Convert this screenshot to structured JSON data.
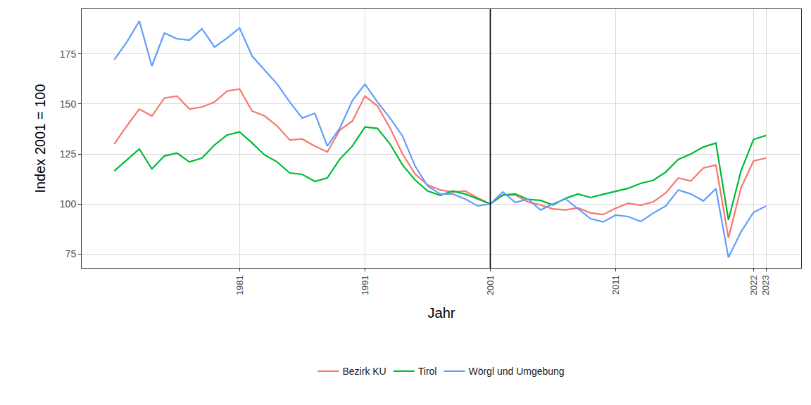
{
  "chart_data": {
    "type": "line",
    "x_title": "Jahr",
    "y_title": "Index 2001 = 100",
    "x": [
      1971,
      1972,
      1973,
      1974,
      1975,
      1976,
      1977,
      1978,
      1979,
      1980,
      1981,
      1982,
      1983,
      1984,
      1985,
      1986,
      1987,
      1988,
      1989,
      1990,
      1991,
      1992,
      1993,
      1994,
      1995,
      1996,
      1997,
      1998,
      1999,
      2000,
      2001,
      2002,
      2003,
      2004,
      2005,
      2006,
      2007,
      2008,
      2009,
      2010,
      2011,
      2012,
      2013,
      2014,
      2015,
      2016,
      2017,
      2018,
      2019,
      2020,
      2021,
      2022,
      2023
    ],
    "series": [
      {
        "name": "Bezirk KU",
        "color": "#F8766D",
        "values": [
          130,
          139,
          147.5,
          144,
          153,
          154,
          147.5,
          148.5,
          151,
          156.5,
          157.5,
          146.5,
          144,
          139,
          132,
          132.5,
          129,
          126,
          137,
          141.5,
          154,
          149,
          138,
          125,
          115,
          109.5,
          107,
          106,
          106.5,
          103,
          100,
          104.5,
          104.5,
          101,
          99.5,
          97.5,
          97,
          98,
          95.5,
          94.7,
          97.8,
          100.3,
          99.4,
          101,
          105.5,
          113,
          111.5,
          118,
          119.5,
          83,
          108,
          121.5,
          123
        ]
      },
      {
        "name": "Tirol",
        "color": "#00BA38",
        "values": [
          116.5,
          122,
          127.5,
          117.5,
          124,
          125.5,
          121,
          123,
          129.5,
          134.5,
          136,
          130.5,
          124.5,
          121,
          115.5,
          114.8,
          111.3,
          113,
          122.5,
          129,
          138.5,
          137.8,
          130,
          119.5,
          112,
          106.5,
          104.3,
          106.5,
          105,
          102.5,
          100,
          104.5,
          105,
          102.3,
          101.8,
          99.5,
          102.8,
          105,
          103.2,
          104.8,
          106.3,
          107.8,
          110.3,
          111.8,
          116,
          122.3,
          125,
          128.5,
          130.5,
          92,
          116.5,
          132.3,
          134.3
        ]
      },
      {
        "name": "Wörgl und Umgebung",
        "color": "#619CFF",
        "values": [
          172.2,
          181,
          191.5,
          169,
          185.5,
          182.7,
          182,
          187.7,
          178.5,
          183,
          188,
          174,
          167,
          160,
          151,
          143,
          145.4,
          129,
          138,
          151.7,
          160,
          151,
          143,
          134,
          119,
          109,
          105,
          105,
          102.5,
          99,
          100,
          106,
          100.7,
          102.5,
          97,
          100,
          102.5,
          97.5,
          92.6,
          91,
          94.4,
          93.7,
          91.2,
          95.4,
          99,
          107,
          105,
          101.5,
          107.7,
          73.2,
          86,
          95.8,
          99
        ]
      }
    ],
    "xlim": [
      1968.4,
      2025.8
    ],
    "xticks": [
      1981,
      1991,
      2001,
      2011,
      2022,
      2023
    ],
    "ylim": [
      68,
      197.5
    ],
    "yticks": [
      75,
      100,
      125,
      150,
      175
    ],
    "vlines": [
      2001
    ],
    "grid": true,
    "legend": "bottom"
  }
}
